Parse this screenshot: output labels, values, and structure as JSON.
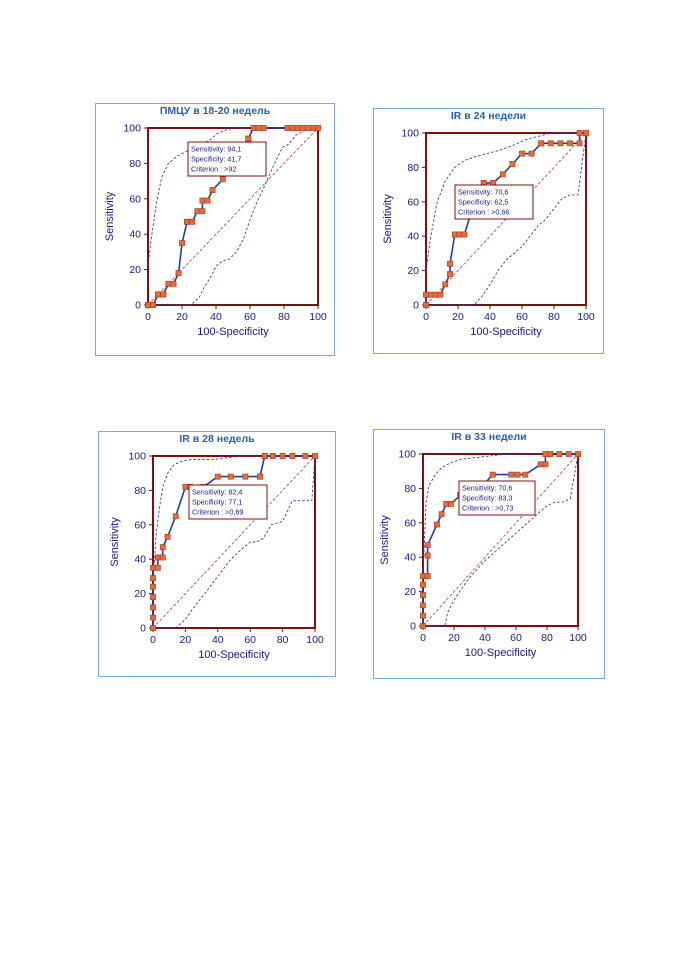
{
  "chart_data": [
    {
      "type": "line",
      "title": "ПМЦУ в 18-20 недель",
      "xlabel": "100-Specificity",
      "ylabel": "Sensitivity",
      "xlim": [
        0,
        100
      ],
      "ylim": [
        0,
        100
      ],
      "xticks": [
        "0",
        "20",
        "40",
        "60",
        "80",
        "100"
      ],
      "yticks": [
        "0",
        "20",
        "40",
        "60",
        "80",
        "100"
      ],
      "grid": false,
      "stats": [
        "Sensitivity: 94,1",
        "Specificity: 41,7",
        "Criterion : >92"
      ],
      "roc": {
        "x": [
          0,
          0,
          3,
          3,
          6,
          6,
          9,
          9,
          12,
          15,
          18,
          18,
          20,
          23,
          23,
          26,
          29,
          32,
          32,
          35,
          38,
          38,
          44,
          50,
          53,
          56,
          56,
          59,
          59,
          62,
          65,
          68,
          82,
          85,
          88,
          91,
          94,
          97,
          100
        ],
        "y": [
          0,
          0,
          0,
          0,
          6,
          6,
          6,
          6,
          12,
          12,
          18,
          18,
          35,
          47,
          47,
          47,
          53,
          53,
          59,
          59,
          65,
          65,
          71,
          82,
          82,
          88,
          88,
          94,
          94,
          100,
          100,
          100,
          100,
          100,
          100,
          100,
          100,
          100,
          100
        ]
      },
      "ci_upper": {
        "x": [
          0,
          2,
          5,
          8,
          12,
          17,
          21,
          25,
          30,
          36,
          41,
          46,
          51,
          55,
          59,
          63,
          68,
          100
        ],
        "y": [
          22,
          38,
          58,
          72,
          80,
          84,
          86,
          88,
          90,
          93,
          97,
          99,
          100,
          100,
          100,
          100,
          100,
          100
        ]
      },
      "ci_lower": {
        "x": [
          0,
          25,
          30,
          33,
          37,
          40,
          44,
          48,
          52,
          56,
          60,
          64,
          68,
          72,
          76,
          79,
          83,
          87,
          93,
          100
        ],
        "y": [
          0,
          0,
          4,
          10,
          16,
          22,
          25,
          26,
          30,
          37,
          48,
          58,
          66,
          75,
          83,
          89,
          91,
          96,
          99,
          100
        ]
      }
    },
    {
      "type": "line",
      "title": "IR в 24 недели",
      "xlabel": "100-Specificity",
      "ylabel": "Sensitivity",
      "xlim": [
        0,
        100
      ],
      "ylim": [
        0,
        100
      ],
      "xticks": [
        "0",
        "20",
        "40",
        "60",
        "80",
        "100"
      ],
      "yticks": [
        "0",
        "20",
        "40",
        "60",
        "80",
        "100"
      ],
      "grid": false,
      "stats": [
        "Sensitivity: 70,6",
        "Specificity: 62,5",
        "Criterion : >0,66"
      ],
      "roc": {
        "x": [
          0,
          0,
          3,
          6,
          9,
          12,
          15,
          15,
          18,
          21,
          21,
          24,
          30,
          30,
          36,
          42,
          48,
          54,
          60,
          66,
          72,
          72,
          78,
          84,
          90,
          96,
          96,
          100
        ],
        "y": [
          0,
          6,
          6,
          6,
          6,
          12,
          18,
          24,
          41,
          41,
          41,
          41,
          59,
          59,
          71,
          71,
          76,
          82,
          88,
          88,
          94,
          94,
          94,
          94,
          94,
          94,
          100,
          100
        ]
      },
      "ci_upper": {
        "x": [
          0,
          3,
          7,
          12,
          18,
          24,
          30,
          38,
          46,
          55,
          62,
          70,
          78,
          85,
          90,
          100
        ],
        "y": [
          20,
          40,
          60,
          72,
          80,
          84,
          86,
          88,
          90,
          93,
          96,
          98,
          100,
          100,
          100,
          100
        ]
      },
      "ci_lower": {
        "x": [
          0,
          30,
          35,
          40,
          45,
          50,
          55,
          60,
          65,
          70,
          75,
          80,
          85,
          90,
          95,
          100
        ],
        "y": [
          0,
          0,
          5,
          12,
          20,
          26,
          30,
          34,
          40,
          46,
          50,
          56,
          62,
          64,
          64,
          100
        ]
      }
    },
    {
      "type": "line",
      "title": "IR в 28 недель",
      "xlabel": "100-Specificity",
      "ylabel": "Sensitivity",
      "xlim": [
        0,
        100
      ],
      "ylim": [
        0,
        100
      ],
      "xticks": [
        "0",
        "20",
        "40",
        "60",
        "80",
        "100"
      ],
      "yticks": [
        "0",
        "20",
        "40",
        "60",
        "80",
        "100"
      ],
      "grid": false,
      "stats": [
        "Sensitivity: 82,4",
        "Specificity: 77,1",
        "Criterion : >0,69"
      ],
      "roc": {
        "x": [
          0,
          0,
          0,
          0,
          0,
          0,
          0,
          3,
          3,
          6,
          6,
          9,
          14,
          20,
          23,
          31,
          40,
          48,
          57,
          66,
          66,
          69,
          69,
          74,
          80,
          86,
          94,
          100
        ],
        "y": [
          0,
          6,
          12,
          18,
          24,
          29,
          35,
          35,
          41,
          41,
          47,
          53,
          65,
          82,
          82,
          82,
          88,
          88,
          88,
          88,
          88,
          100,
          100,
          100,
          100,
          100,
          100,
          100
        ]
      },
      "ci_upper": {
        "x": [
          0,
          2,
          4,
          6,
          9,
          13,
          18,
          24,
          30,
          38,
          46,
          55,
          65,
          100
        ],
        "y": [
          25,
          55,
          70,
          82,
          90,
          95,
          97,
          98,
          98,
          98,
          99,
          100,
          100,
          100
        ]
      },
      "ci_lower": {
        "x": [
          0,
          8,
          14,
          20,
          26,
          32,
          40,
          48,
          55,
          60,
          64,
          68,
          73,
          80,
          86,
          90,
          94,
          98,
          100
        ],
        "y": [
          0,
          0,
          0,
          5,
          13,
          20,
          30,
          40,
          46,
          50,
          50,
          52,
          60,
          62,
          74,
          74,
          74,
          74,
          100
        ]
      }
    },
    {
      "type": "line",
      "title": "IR в 33 недели",
      "xlabel": "100-Specificity",
      "ylabel": "Sensitivity",
      "xlim": [
        0,
        100
      ],
      "ylim": [
        0,
        100
      ],
      "xticks": [
        "0",
        "20",
        "40",
        "60",
        "80",
        "100"
      ],
      "yticks": [
        "0",
        "20",
        "40",
        "60",
        "80",
        "100"
      ],
      "grid": false,
      "stats": [
        "Sensitivity: 70,6",
        "Specificity: 83,3",
        "Criterion : >0,73"
      ],
      "roc": {
        "x": [
          0,
          0,
          0,
          0,
          0,
          0,
          3,
          3,
          3,
          9,
          12,
          15,
          18,
          24,
          24,
          33,
          45,
          57,
          61,
          66,
          76,
          79,
          79,
          82,
          88,
          94,
          100
        ],
        "y": [
          0,
          6,
          12,
          18,
          24,
          29,
          29,
          41,
          47,
          59,
          65,
          71,
          71,
          76,
          76,
          76,
          88,
          88,
          88,
          88,
          94,
          94,
          100,
          100,
          100,
          100,
          100
        ]
      },
      "ci_upper": {
        "x": [
          0,
          2,
          4,
          8,
          12,
          18,
          25,
          35,
          45,
          55,
          65,
          75,
          85,
          100
        ],
        "y": [
          30,
          72,
          82,
          88,
          92,
          95,
          97,
          98,
          99,
          100,
          100,
          100,
          100,
          100
        ]
      },
      "ci_lower": {
        "x": [
          0,
          14,
          16,
          20,
          25,
          30,
          35,
          40,
          45,
          50,
          55,
          60,
          65,
          70,
          75,
          80,
          85,
          90,
          95,
          100
        ],
        "y": [
          0,
          0,
          8,
          15,
          22,
          28,
          33,
          38,
          42,
          46,
          50,
          54,
          58,
          62,
          66,
          70,
          72,
          72,
          74,
          100
        ]
      }
    }
  ]
}
